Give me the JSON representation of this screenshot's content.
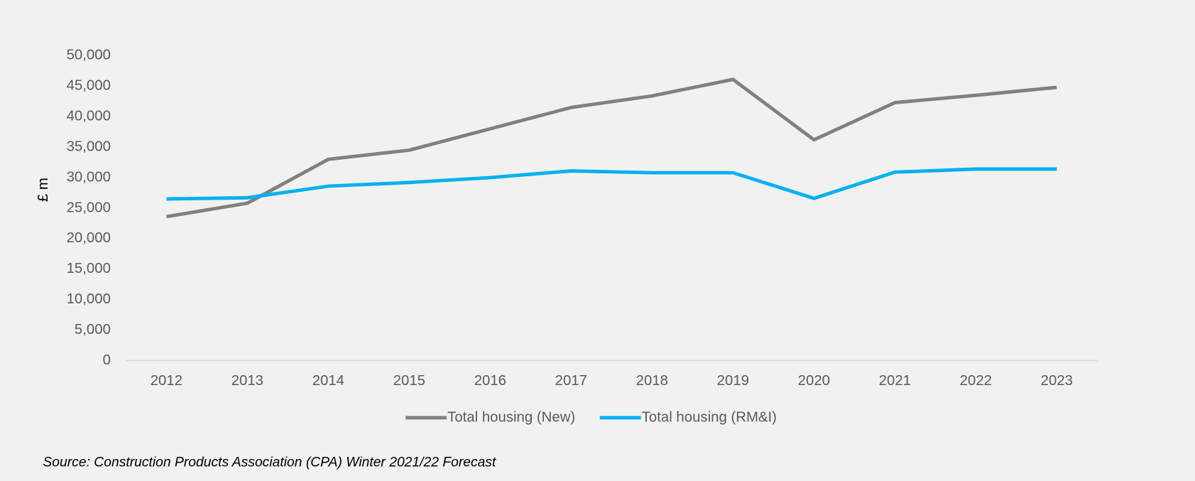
{
  "chart_data": {
    "type": "line",
    "y_label": "£ m",
    "categories": [
      "2012",
      "2013",
      "2014",
      "2015",
      "2016",
      "2017",
      "2018",
      "2019",
      "2020",
      "2021",
      "2022",
      "2023"
    ],
    "series": [
      {
        "name": "Total housing (New)",
        "color": "#808080",
        "values": [
          23600,
          25800,
          33000,
          34500,
          38000,
          41500,
          43400,
          46100,
          36200,
          42300,
          43500,
          44800
        ]
      },
      {
        "name": "Total housing (RM&I)",
        "color": "#00b0f0",
        "values": [
          26500,
          26700,
          28600,
          29200,
          30000,
          31100,
          30800,
          30800,
          26600,
          30900,
          31400,
          31400
        ]
      }
    ],
    "ylim": [
      0,
      50000
    ],
    "yticks": [
      0,
      {
        "value": 5000,
        "label": "5,000"
      },
      {
        "value": 10000,
        "label": "10,000"
      },
      {
        "value": 15000,
        "label": "15,000"
      },
      {
        "value": 20000,
        "label": "20,000"
      },
      {
        "value": 25000,
        "label": "25,000"
      },
      {
        "value": 30000,
        "label": "30,000"
      },
      {
        "value": 35000,
        "label": "35,000"
      },
      {
        "value": 40000,
        "label": "40,000"
      },
      {
        "value": 45000,
        "label": "45,000"
      },
      {
        "value": 50000,
        "label": "50,000"
      }
    ],
    "grid": false,
    "legend": "bottom",
    "source": "Source:  Construction Products Association (CPA) Winter 2021/22 Forecast"
  }
}
